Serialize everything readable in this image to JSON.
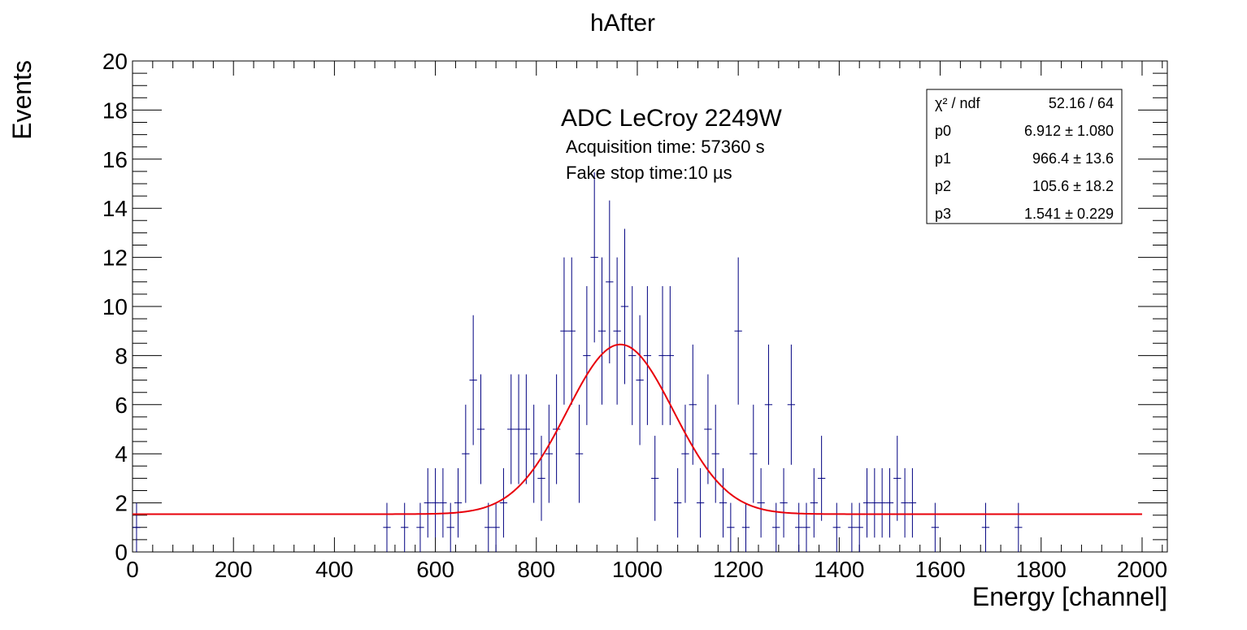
{
  "chart_data": {
    "type": "histogram",
    "title": "hAfter",
    "xlabel": "Energy [channel]",
    "ylabel": "Events",
    "xlim": [
      0,
      2050
    ],
    "ylim": [
      0,
      20
    ],
    "x_ticks": [
      0,
      200,
      400,
      600,
      800,
      1000,
      1200,
      1400,
      1600,
      1800,
      2000
    ],
    "y_ticks": [
      0,
      2,
      4,
      6,
      8,
      10,
      12,
      14,
      16,
      18,
      20
    ],
    "x_tick_labels": [
      "0",
      "200",
      "400",
      "600",
      "800",
      "1000",
      "1200",
      "1400",
      "1600",
      "1800",
      "2000"
    ],
    "y_tick_labels": [
      "0",
      "2",
      "4",
      "6",
      "8",
      "10",
      "12",
      "14",
      "16",
      "18",
      "20"
    ],
    "bin_width": 15,
    "annotations": {
      "main": "ADC LeCroy 2249W",
      "line1": "Acquisition time: 57360 s",
      "line2": "Fake stop time:10 µs"
    },
    "stats_box": {
      "rows": [
        {
          "label": "χ² / ndf",
          "value": "52.16 / 64"
        },
        {
          "label": "p0",
          "value": "6.912 ± 1.080"
        },
        {
          "label": "p1",
          "value": "966.4 ± 13.6"
        },
        {
          "label": "p2",
          "value": "105.6 ± 18.2"
        },
        {
          "label": "p3",
          "value": "1.541 ± 0.229"
        }
      ]
    },
    "fit": {
      "name": "gaussian + constant",
      "p0": 6.912,
      "p1": 966.4,
      "p2": 105.6,
      "p3": 1.541,
      "color": "#e8000b"
    },
    "series": [
      {
        "name": "",
        "color": "#000080",
        "points": [
          {
            "x": 8,
            "y": 1
          },
          {
            "x": 504,
            "y": 1
          },
          {
            "x": 539,
            "y": 1
          },
          {
            "x": 570,
            "y": 1
          },
          {
            "x": 585,
            "y": 2
          },
          {
            "x": 600,
            "y": 2
          },
          {
            "x": 615,
            "y": 2
          },
          {
            "x": 630,
            "y": 1
          },
          {
            "x": 645,
            "y": 2
          },
          {
            "x": 660,
            "y": 4
          },
          {
            "x": 675,
            "y": 7
          },
          {
            "x": 690,
            "y": 5
          },
          {
            "x": 705,
            "y": 1
          },
          {
            "x": 720,
            "y": 1
          },
          {
            "x": 735,
            "y": 2
          },
          {
            "x": 750,
            "y": 5
          },
          {
            "x": 765,
            "y": 5
          },
          {
            "x": 780,
            "y": 5
          },
          {
            "x": 795,
            "y": 4
          },
          {
            "x": 810,
            "y": 3
          },
          {
            "x": 825,
            "y": 4
          },
          {
            "x": 840,
            "y": 5
          },
          {
            "x": 855,
            "y": 9
          },
          {
            "x": 870,
            "y": 9
          },
          {
            "x": 885,
            "y": 4
          },
          {
            "x": 900,
            "y": 8
          },
          {
            "x": 915,
            "y": 12
          },
          {
            "x": 930,
            "y": 9
          },
          {
            "x": 945,
            "y": 11
          },
          {
            "x": 960,
            "y": 9
          },
          {
            "x": 975,
            "y": 10
          },
          {
            "x": 990,
            "y": 8
          },
          {
            "x": 1005,
            "y": 7
          },
          {
            "x": 1020,
            "y": 8
          },
          {
            "x": 1035,
            "y": 3
          },
          {
            "x": 1050,
            "y": 8
          },
          {
            "x": 1065,
            "y": 8
          },
          {
            "x": 1080,
            "y": 2
          },
          {
            "x": 1095,
            "y": 4
          },
          {
            "x": 1110,
            "y": 6
          },
          {
            "x": 1125,
            "y": 2
          },
          {
            "x": 1140,
            "y": 5
          },
          {
            "x": 1155,
            "y": 4
          },
          {
            "x": 1170,
            "y": 2
          },
          {
            "x": 1185,
            "y": 1
          },
          {
            "x": 1200,
            "y": 9
          },
          {
            "x": 1215,
            "y": 1
          },
          {
            "x": 1230,
            "y": 4
          },
          {
            "x": 1245,
            "y": 2
          },
          {
            "x": 1260,
            "y": 6
          },
          {
            "x": 1275,
            "y": 1
          },
          {
            "x": 1290,
            "y": 2
          },
          {
            "x": 1305,
            "y": 6
          },
          {
            "x": 1320,
            "y": 1
          },
          {
            "x": 1335,
            "y": 1
          },
          {
            "x": 1350,
            "y": 2
          },
          {
            "x": 1365,
            "y": 3
          },
          {
            "x": 1395,
            "y": 1
          },
          {
            "x": 1425,
            "y": 1
          },
          {
            "x": 1440,
            "y": 1
          },
          {
            "x": 1455,
            "y": 2
          },
          {
            "x": 1470,
            "y": 2
          },
          {
            "x": 1485,
            "y": 2
          },
          {
            "x": 1500,
            "y": 2
          },
          {
            "x": 1515,
            "y": 3
          },
          {
            "x": 1530,
            "y": 2
          },
          {
            "x": 1545,
            "y": 2
          },
          {
            "x": 1590,
            "y": 1
          },
          {
            "x": 1690,
            "y": 1
          },
          {
            "x": 1755,
            "y": 1
          }
        ]
      }
    ],
    "grid": false,
    "legend": "top-right stats box"
  }
}
